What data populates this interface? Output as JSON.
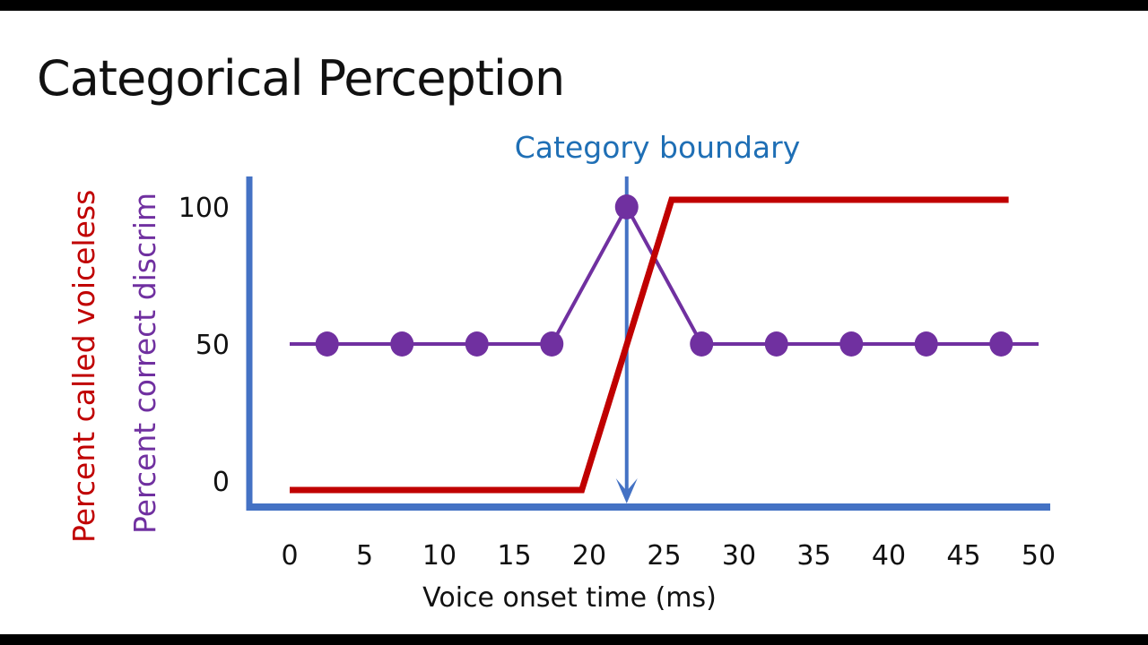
{
  "title": "Categorical Perception",
  "chart_data": {
    "type": "line",
    "xlabel": "Voice onset time (ms)",
    "ylabels": [
      "Percent called voiceless",
      "Percent correct discrim"
    ],
    "x_ticks": [
      0,
      5,
      10,
      15,
      20,
      25,
      30,
      35,
      40,
      45,
      50
    ],
    "y_ticks": [
      0,
      50,
      100
    ],
    "xlim": [
      0,
      50
    ],
    "ylim": [
      0,
      100
    ],
    "grid": false,
    "annotation": {
      "text": "Category boundary",
      "x": 22.5,
      "color": "#1f6fb5"
    },
    "series": [
      {
        "name": "Percent called voiceless",
        "color": "#c00000",
        "markers": false,
        "x": [
          0,
          19.5,
          25.5,
          48
        ],
        "y": [
          0,
          0,
          100,
          100
        ]
      },
      {
        "name": "Percent correct discrim",
        "color": "#7030a0",
        "markers": true,
        "line_x": [
          0,
          50
        ],
        "x": [
          2.5,
          7.5,
          12.5,
          17.5,
          22.5,
          27.5,
          32.5,
          37.5,
          42.5,
          47.5
        ],
        "y": [
          50,
          50,
          50,
          50,
          100,
          50,
          50,
          50,
          50,
          50
        ]
      }
    ],
    "axis_color": "#4472c4"
  }
}
